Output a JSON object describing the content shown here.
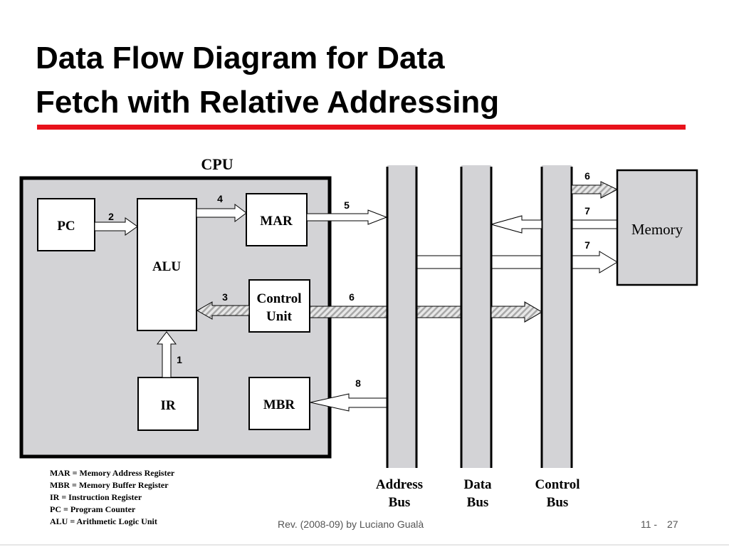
{
  "title": {
    "line1": "Data Flow Diagram for Data",
    "line2": "Fetch with Relative Addressing"
  },
  "colors": {
    "accent_rule": "#e8121b",
    "cpu_fill": "#d3d3d6",
    "bus_fill": "#d3d3d6",
    "footer_text": "#555555"
  },
  "cpu": {
    "label": "CPU",
    "blocks": {
      "pc": "PC",
      "alu": "ALU",
      "mar": "MAR",
      "control_line1": "Control",
      "control_line2": "Unit",
      "ir": "IR",
      "mbr": "MBR"
    }
  },
  "memory": {
    "label": "Memory"
  },
  "buses": [
    {
      "line1": "Address",
      "line2": "Bus"
    },
    {
      "line1": "Data",
      "line2": "Bus"
    },
    {
      "line1": "Control",
      "line2": "Bus"
    }
  ],
  "steps": {
    "ir_to_alu": "1",
    "pc_to_alu": "2",
    "cu_to_alu": "3",
    "alu_to_mar": "4",
    "mar_to_bus": "5",
    "cu_to_bus": "6",
    "bus_to_mem_ctrl": "6",
    "mem_to_data": "7",
    "addr_to_mem": "7",
    "bus_to_mbr": "8"
  },
  "legend": [
    "MAR = Memory Address Register",
    "MBR = Memory Buffer Register",
    "IR = Instruction Register",
    "PC = Program Counter",
    "ALU = Arithmetic Logic Unit"
  ],
  "footer": {
    "credit": "Rev. (2008-09) by Luciano Gualà",
    "chapter": "11 -",
    "page": "27"
  }
}
